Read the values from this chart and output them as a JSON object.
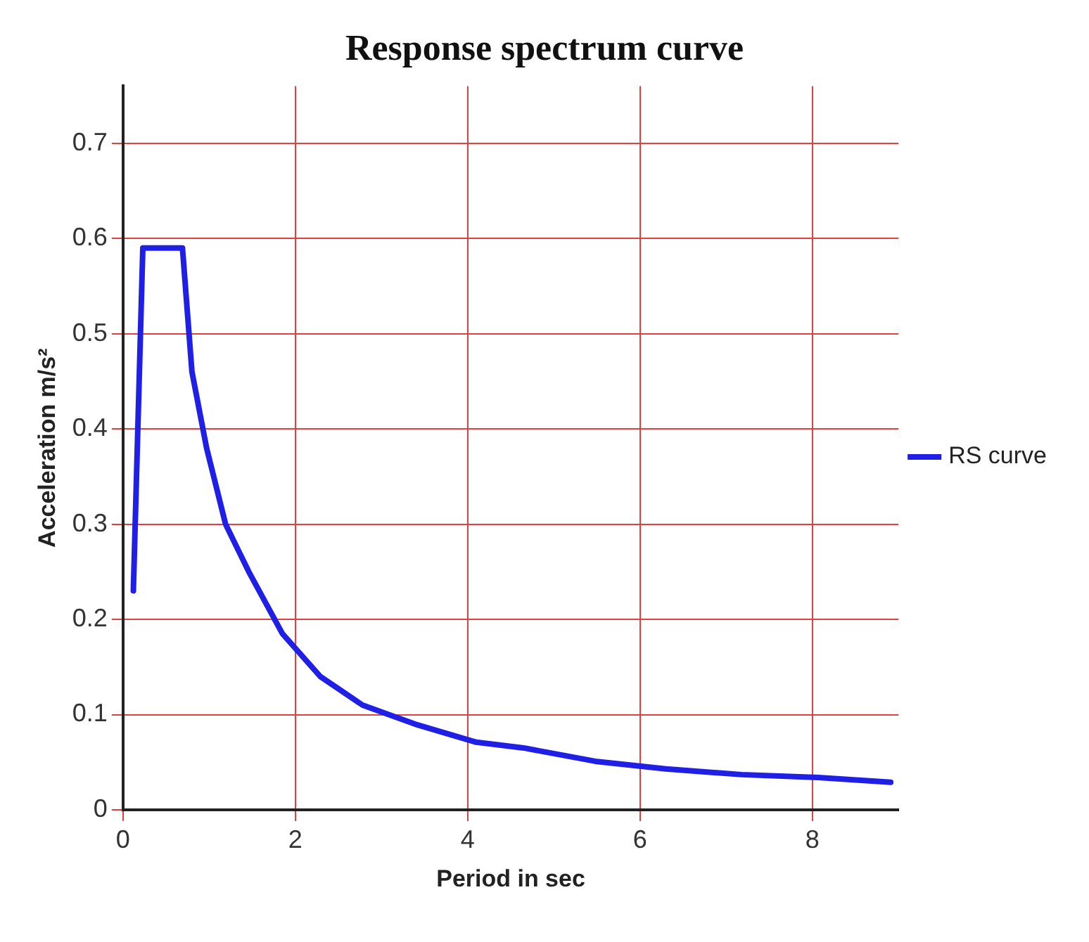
{
  "chart_data": {
    "type": "line",
    "title": "Response spectrum curve",
    "xlabel": "Period in sec",
    "ylabel": "Acceleration m/s²",
    "xlim": [
      0,
      9
    ],
    "xticks": [
      0,
      2,
      4,
      6,
      8
    ],
    "ylim": [
      0,
      0.76
    ],
    "yticks": [
      0,
      0.1,
      0.2,
      0.3,
      0.4,
      0.5,
      0.6,
      0.7
    ],
    "grid": true,
    "legend": "right",
    "marker": "none",
    "line_style": "solid",
    "series": [
      {
        "name": "RS curve",
        "color": "#1f1fe6",
        "x": [
          0.12,
          0.23,
          0.69,
          0.8,
          0.97,
          1.19,
          1.46,
          1.85,
          2.29,
          2.78,
          3.39,
          4.1,
          4.65,
          5.48,
          6.3,
          7.18,
          8.07,
          8.91
        ],
        "values": [
          0.23,
          0.59,
          0.59,
          0.46,
          0.38,
          0.3,
          0.25,
          0.185,
          0.14,
          0.11,
          0.09,
          0.071,
          0.065,
          0.051,
          0.043,
          0.037,
          0.034,
          0.029
        ]
      }
    ]
  }
}
